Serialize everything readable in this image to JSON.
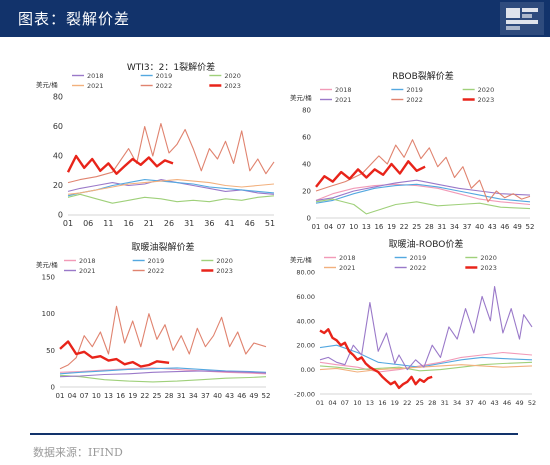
{
  "header": {
    "title": "图表：裂解价差"
  },
  "footer": {
    "source": "数据来源：IFIND"
  },
  "chart_data": [
    {
      "type": "line",
      "title": "WTI3：2：1裂解价差",
      "unit": "美元/桶",
      "ylim": [
        0,
        80
      ],
      "yticks": [
        0,
        20,
        40,
        60,
        80
      ],
      "xticks": [
        "01",
        "06",
        "11",
        "16",
        "21",
        "26",
        "31",
        "36",
        "41",
        "46",
        "51"
      ],
      "xrange": [
        1,
        52
      ],
      "grid": false,
      "legend_position": "top",
      "series": [
        {
          "name": "2018",
          "color": "#9a79c9",
          "x": [
            1,
            4,
            8,
            12,
            16,
            20,
            24,
            28,
            32,
            36,
            40,
            44,
            48,
            52
          ],
          "y": [
            16,
            18,
            20,
            22,
            20,
            21,
            24,
            22,
            20,
            18,
            16,
            17,
            15,
            14
          ]
        },
        {
          "name": "2019",
          "color": "#54a8e0",
          "x": [
            1,
            4,
            8,
            12,
            16,
            20,
            24,
            28,
            32,
            36,
            40,
            44,
            48,
            52
          ],
          "y": [
            13,
            15,
            17,
            20,
            22,
            24,
            23,
            22,
            21,
            19,
            18,
            17,
            16,
            15
          ]
        },
        {
          "name": "2020",
          "color": "#9fd07a",
          "x": [
            1,
            4,
            8,
            12,
            16,
            20,
            24,
            28,
            32,
            36,
            40,
            44,
            48,
            52
          ],
          "y": [
            12,
            14,
            11,
            8,
            10,
            12,
            11,
            9,
            10,
            9,
            11,
            10,
            12,
            13
          ]
        },
        {
          "name": "2021",
          "color": "#f2b07d",
          "x": [
            1,
            4,
            8,
            12,
            16,
            20,
            24,
            28,
            32,
            36,
            40,
            44,
            48,
            52
          ],
          "y": [
            14,
            15,
            17,
            19,
            21,
            22,
            23,
            24,
            23,
            22,
            20,
            19,
            20,
            21
          ]
        },
        {
          "name": "2022",
          "color": "#e0836f",
          "x": [
            1,
            4,
            8,
            12,
            16,
            18,
            20,
            22,
            24,
            26,
            28,
            30,
            32,
            34,
            36,
            38,
            40,
            42,
            44,
            46,
            48,
            50,
            52
          ],
          "y": [
            22,
            24,
            26,
            29,
            45,
            35,
            60,
            40,
            62,
            42,
            48,
            58,
            45,
            30,
            45,
            38,
            50,
            35,
            57,
            30,
            38,
            28,
            36
          ]
        },
        {
          "name": "2023",
          "color": "#e8241a",
          "x": [
            1,
            3,
            5,
            7,
            9,
            11,
            13,
            15,
            17,
            19,
            21,
            23,
            25,
            27
          ],
          "y": [
            29,
            40,
            32,
            38,
            30,
            35,
            28,
            33,
            38,
            34,
            39,
            33,
            37,
            35
          ]
        }
      ]
    },
    {
      "type": "line",
      "title": "RBOB裂解价差",
      "unit": "美元/桶",
      "ylim": [
        0,
        80
      ],
      "yticks": [
        0,
        20,
        40,
        60,
        80
      ],
      "xticks": [
        "01",
        "04",
        "07",
        "10",
        "13",
        "16",
        "19",
        "22",
        "25",
        "28",
        "31",
        "34",
        "37",
        "40",
        "43",
        "46",
        "49",
        "52"
      ],
      "xrange": [
        1,
        52
      ],
      "grid": false,
      "legend_position": "top",
      "series": [
        {
          "name": "2018",
          "color": "#f29ab7",
          "x": [
            1,
            5,
            10,
            15,
            20,
            25,
            30,
            35,
            40,
            45,
            52
          ],
          "y": [
            13,
            18,
            22,
            24,
            25,
            24,
            22,
            18,
            14,
            12,
            10
          ]
        },
        {
          "name": "2019",
          "color": "#54a8e0",
          "x": [
            1,
            5,
            10,
            15,
            20,
            25,
            30,
            35,
            40,
            45,
            52
          ],
          "y": [
            11,
            13,
            18,
            22,
            24,
            25,
            23,
            20,
            17,
            14,
            12
          ]
        },
        {
          "name": "2020",
          "color": "#9fd07a",
          "x": [
            1,
            5,
            10,
            13,
            16,
            20,
            25,
            30,
            35,
            40,
            45,
            52
          ],
          "y": [
            12,
            14,
            10,
            3,
            6,
            10,
            12,
            9,
            10,
            11,
            8,
            7
          ]
        },
        {
          "name": "2021",
          "color": "#9a79c9",
          "x": [
            1,
            5,
            10,
            15,
            20,
            25,
            30,
            35,
            40,
            45,
            52
          ],
          "y": [
            13,
            15,
            20,
            23,
            26,
            28,
            25,
            22,
            20,
            18,
            17
          ]
        },
        {
          "name": "2022",
          "color": "#e0836f",
          "x": [
            1,
            4,
            8,
            12,
            16,
            18,
            20,
            22,
            24,
            26,
            28,
            30,
            32,
            34,
            36,
            38,
            40,
            42,
            44,
            46,
            48,
            50,
            52
          ],
          "y": [
            20,
            23,
            27,
            33,
            46,
            40,
            54,
            45,
            58,
            44,
            52,
            38,
            45,
            30,
            38,
            22,
            28,
            12,
            20,
            15,
            18,
            14,
            16
          ]
        },
        {
          "name": "2023",
          "color": "#e8241a",
          "x": [
            1,
            3,
            5,
            7,
            9,
            11,
            13,
            15,
            17,
            19,
            21,
            23,
            25,
            27
          ],
          "y": [
            23,
            31,
            27,
            34,
            29,
            36,
            30,
            36,
            32,
            40,
            33,
            42,
            35,
            38
          ]
        }
      ]
    },
    {
      "type": "line",
      "title": "取暖油裂解价差",
      "unit": "美元/桶",
      "ylim": [
        0,
        150
      ],
      "yticks": [
        0,
        50,
        100,
        150
      ],
      "xticks": [
        "01",
        "04",
        "07",
        "10",
        "13",
        "16",
        "19",
        "22",
        "25",
        "28",
        "31",
        "34",
        "37",
        "40",
        "43",
        "46",
        "49",
        "52"
      ],
      "xrange": [
        1,
        52
      ],
      "grid": false,
      "legend_position": "top",
      "series": [
        {
          "name": "2018",
          "color": "#f29ab7",
          "x": [
            1,
            6,
            12,
            18,
            24,
            30,
            36,
            42,
            48,
            52
          ],
          "y": [
            20,
            21,
            23,
            25,
            26,
            24,
            22,
            20,
            19,
            18
          ]
        },
        {
          "name": "2019",
          "color": "#54a8e0",
          "x": [
            1,
            6,
            12,
            18,
            24,
            30,
            36,
            42,
            48,
            52
          ],
          "y": [
            18,
            20,
            22,
            24,
            25,
            26,
            24,
            22,
            21,
            20
          ]
        },
        {
          "name": "2020",
          "color": "#9fd07a",
          "x": [
            1,
            6,
            12,
            18,
            24,
            30,
            36,
            42,
            48,
            52
          ],
          "y": [
            16,
            14,
            10,
            8,
            7,
            8,
            10,
            12,
            13,
            14
          ]
        },
        {
          "name": "2021",
          "color": "#9a79c9",
          "x": [
            1,
            6,
            12,
            18,
            24,
            30,
            36,
            42,
            48,
            52
          ],
          "y": [
            14,
            15,
            17,
            18,
            20,
            21,
            22,
            21,
            20,
            19
          ]
        },
        {
          "name": "2022",
          "color": "#e0836f",
          "x": [
            1,
            3,
            5,
            7,
            9,
            11,
            13,
            15,
            17,
            19,
            21,
            23,
            25,
            27,
            29,
            31,
            33,
            35,
            37,
            39,
            41,
            43,
            45,
            47,
            49,
            52
          ],
          "y": [
            25,
            30,
            40,
            70,
            55,
            75,
            45,
            110,
            60,
            90,
            55,
            100,
            65,
            85,
            50,
            70,
            45,
            80,
            55,
            70,
            95,
            55,
            75,
            45,
            60,
            55
          ]
        },
        {
          "name": "2023",
          "color": "#e8241a",
          "x": [
            1,
            3,
            5,
            7,
            9,
            11,
            13,
            15,
            17,
            19,
            21,
            23,
            25,
            28
          ],
          "y": [
            52,
            62,
            45,
            48,
            40,
            42,
            36,
            38,
            31,
            34,
            28,
            30,
            35,
            33
          ]
        }
      ]
    },
    {
      "type": "line",
      "title": "取暖油-ROBO价差",
      "unit": "美元/桶",
      "ylim": [
        -20,
        80
      ],
      "yticks": [
        "-20.00",
        "0.00",
        "20.00",
        "40.00",
        "60.00",
        "80.00"
      ],
      "yticks_values": [
        -20,
        0,
        20,
        40,
        60,
        80
      ],
      "xticks": [
        "01",
        "04",
        "07",
        "10",
        "13",
        "16",
        "19",
        "22",
        "25",
        "28",
        "31",
        "34",
        "37",
        "40",
        "43",
        "46",
        "49",
        "52"
      ],
      "xrange": [
        1,
        52
      ],
      "grid": false,
      "legend_position": "top",
      "series": [
        {
          "name": "2018",
          "color": "#f29ab7",
          "x": [
            1,
            5,
            10,
            15,
            20,
            25,
            30,
            35,
            40,
            45,
            52
          ],
          "y": [
            6,
            4,
            2,
            -2,
            0,
            3,
            6,
            10,
            12,
            14,
            12
          ]
        },
        {
          "name": "2019",
          "color": "#54a8e0",
          "x": [
            1,
            5,
            10,
            15,
            20,
            25,
            30,
            35,
            40,
            45,
            52
          ],
          "y": [
            18,
            20,
            14,
            6,
            4,
            2,
            5,
            8,
            10,
            9,
            8
          ]
        },
        {
          "name": "2020",
          "color": "#9fd07a",
          "x": [
            1,
            5,
            10,
            15,
            20,
            25,
            30,
            35,
            40,
            45,
            52
          ],
          "y": [
            3,
            2,
            0,
            1,
            2,
            -1,
            0,
            2,
            4,
            5,
            6
          ]
        },
        {
          "name": "2021",
          "color": "#f2b07d",
          "x": [
            1,
            5,
            10,
            15,
            20,
            25,
            30,
            35,
            40,
            45,
            52
          ],
          "y": [
            0,
            1,
            -2,
            0,
            1,
            2,
            3,
            4,
            3,
            2,
            3
          ]
        },
        {
          "name": "2022",
          "color": "#9a79c9",
          "x": [
            1,
            3,
            5,
            7,
            9,
            11,
            13,
            15,
            17,
            19,
            20,
            22,
            24,
            26,
            28,
            30,
            32,
            34,
            36,
            38,
            40,
            42,
            43,
            45,
            47,
            49,
            50,
            52
          ],
          "y": [
            8,
            10,
            6,
            4,
            20,
            12,
            55,
            15,
            30,
            5,
            12,
            0,
            8,
            2,
            20,
            10,
            35,
            25,
            50,
            30,
            60,
            40,
            68,
            30,
            50,
            25,
            45,
            35
          ]
        },
        {
          "name": "2023",
          "color": "#e8241a",
          "x": [
            1,
            2,
            3,
            4,
            5,
            6,
            7,
            8,
            9,
            10,
            11,
            12,
            13,
            14,
            15,
            16,
            17,
            18,
            19,
            20,
            21,
            22,
            23,
            24,
            25,
            26,
            27,
            28
          ],
          "y": [
            32,
            30,
            33,
            26,
            24,
            20,
            22,
            15,
            12,
            8,
            10,
            5,
            2,
            0,
            -2,
            -6,
            -9,
            -12,
            -10,
            -15,
            -12,
            -10,
            -6,
            -12,
            -8,
            -10,
            -7,
            -6
          ]
        }
      ]
    }
  ]
}
